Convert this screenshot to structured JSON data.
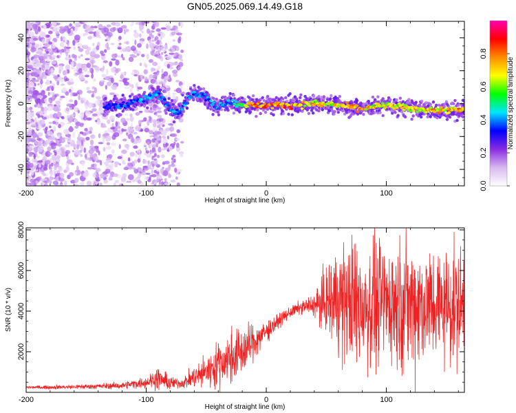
{
  "figure": {
    "title": "GN05.2025.069.14.49.G18"
  },
  "chart_data": [
    {
      "type": "heatmap",
      "xlabel": "Height of straight line (km)",
      "ylabel": "Frequency (Hz)",
      "xlim": [
        -200,
        165
      ],
      "ylim": [
        -50,
        50
      ],
      "x_ticks": [
        -200,
        -100,
        0,
        100
      ],
      "y_ticks": [
        -40,
        -20,
        0,
        20,
        40
      ],
      "colorbar": {
        "label": "Normalized spectral amplitude",
        "range": [
          0,
          1
        ],
        "ticks": [
          "0.0",
          "0.2",
          "0.4",
          "0.6",
          "0.8"
        ],
        "colors": [
          "#ffffff",
          "#d8b8f0",
          "#8a2be2",
          "#0000ff",
          "#00e5ff",
          "#00ff00",
          "#ffff00",
          "#ff8c00",
          "#ff0000",
          "#ff00b0"
        ]
      },
      "ridge": {
        "x": [
          -135,
          -120,
          -100,
          -90,
          -78,
          -72,
          -62,
          -52,
          -42,
          -32,
          -25,
          -10,
          0,
          20,
          40,
          60,
          80,
          100,
          120,
          140,
          160
        ],
        "y": [
          -2,
          -1,
          3,
          6,
          -5,
          -4,
          6,
          5,
          -2,
          1,
          0,
          -1,
          -1,
          -1,
          0,
          -1,
          -3,
          -1,
          -3,
          -4,
          -4
        ],
        "amplitude": [
          0.35,
          0.4,
          0.45,
          0.45,
          0.45,
          0.45,
          0.45,
          0.4,
          0.45,
          0.45,
          0.5,
          0.85,
          0.9,
          0.85,
          0.75,
          0.75,
          0.8,
          0.7,
          0.75,
          0.8,
          0.8
        ]
      }
    },
    {
      "type": "line",
      "xlabel": "Height of straight line (km)",
      "ylabel": "SNR (10 * v/v)",
      "xlim": [
        -200,
        165
      ],
      "ylim": [
        0,
        8100
      ],
      "x_ticks": [
        -200,
        -100,
        0,
        100
      ],
      "y_ticks": [
        2000,
        4000,
        6000,
        8000
      ],
      "line_color": "#ee2222",
      "series": [
        {
          "x": [
            -200,
            -180,
            -160,
            -140,
            -120,
            -100,
            -90,
            -80,
            -70,
            -60,
            -50,
            -40,
            -30,
            -20,
            -10,
            0,
            10,
            20,
            30,
            40,
            50,
            60,
            70,
            80,
            90,
            100,
            110,
            120,
            130,
            140,
            150,
            160,
            165
          ],
          "values": [
            250,
            250,
            270,
            300,
            330,
            500,
            700,
            450,
            450,
            750,
            1000,
            1400,
            1700,
            2000,
            2500,
            3000,
            3500,
            3950,
            4200,
            4300,
            4450,
            4600,
            4450,
            4350,
            4300,
            4500,
            4400,
            4350,
            4350,
            4300,
            4400,
            4300,
            4300
          ],
          "spread": [
            60,
            80,
            100,
            120,
            150,
            250,
            500,
            300,
            200,
            500,
            700,
            1000,
            1200,
            1100,
            800,
            500,
            300,
            250,
            300,
            500,
            1500,
            2500,
            2800,
            3000,
            2800,
            2600,
            2800,
            3000,
            2800,
            2600,
            2500,
            2600,
            2400
          ]
        }
      ]
    }
  ]
}
